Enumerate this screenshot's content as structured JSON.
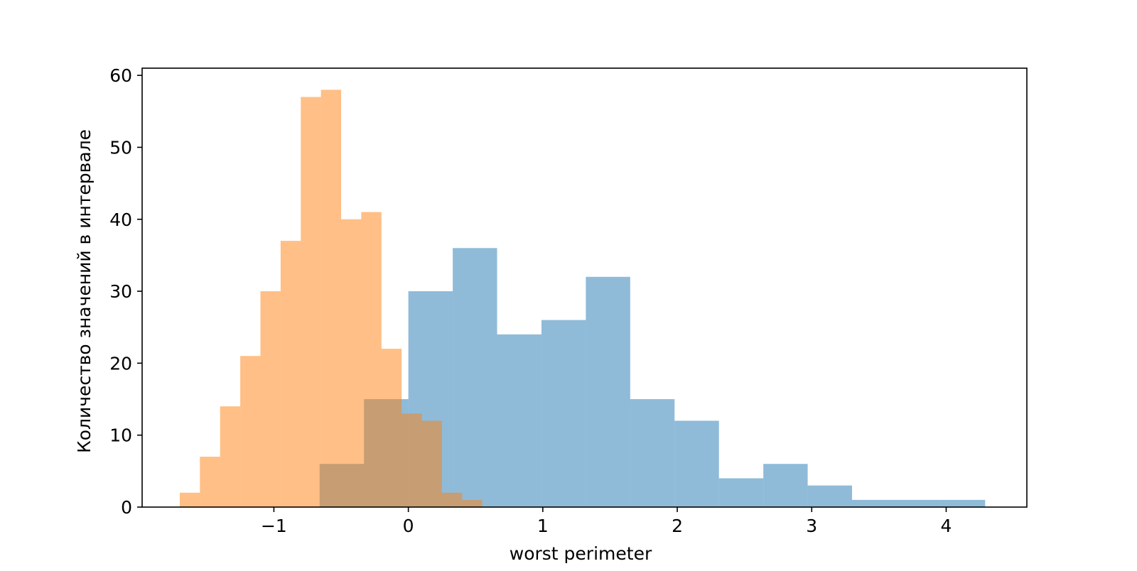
{
  "chart_data": {
    "type": "bar",
    "title": "",
    "xlabel": "worst perimeter",
    "ylabel": "Количество значений в интервале",
    "xlim": [
      -1.98,
      4.6
    ],
    "ylim": [
      0,
      61
    ],
    "xticks": [
      -1,
      0,
      1,
      2,
      3,
      4
    ],
    "xtick_labels": [
      "−1",
      "0",
      "1",
      "2",
      "3",
      "4"
    ],
    "yticks": [
      0,
      10,
      20,
      30,
      40,
      50,
      60
    ],
    "ytick_labels": [
      "0",
      "10",
      "20",
      "30",
      "40",
      "50",
      "60"
    ],
    "grid": false,
    "legend": "none",
    "series": [
      {
        "color": "#1f77b4",
        "opacity": 0.5,
        "bin_edges": [
          -0.66,
          -0.33,
          0.0,
          0.33,
          0.66,
          0.99,
          1.32,
          1.65,
          1.98,
          2.31,
          2.64,
          2.97,
          3.3,
          3.63,
          3.96,
          4.29
        ],
        "counts": [
          6,
          15,
          30,
          36,
          24,
          26,
          32,
          15,
          12,
          4,
          6,
          3,
          1,
          1,
          1
        ]
      },
      {
        "color": "#ff7f0e",
        "opacity": 0.5,
        "bin_edges": [
          -1.7,
          -1.55,
          -1.4,
          -1.25,
          -1.1,
          -0.95,
          -0.8,
          -0.65,
          -0.5,
          -0.35,
          -0.2,
          -0.05,
          0.1,
          0.25,
          0.4,
          0.55
        ],
        "counts": [
          2,
          7,
          14,
          21,
          30,
          37,
          57,
          58,
          40,
          41,
          22,
          13,
          12,
          2,
          1
        ]
      }
    ]
  }
}
